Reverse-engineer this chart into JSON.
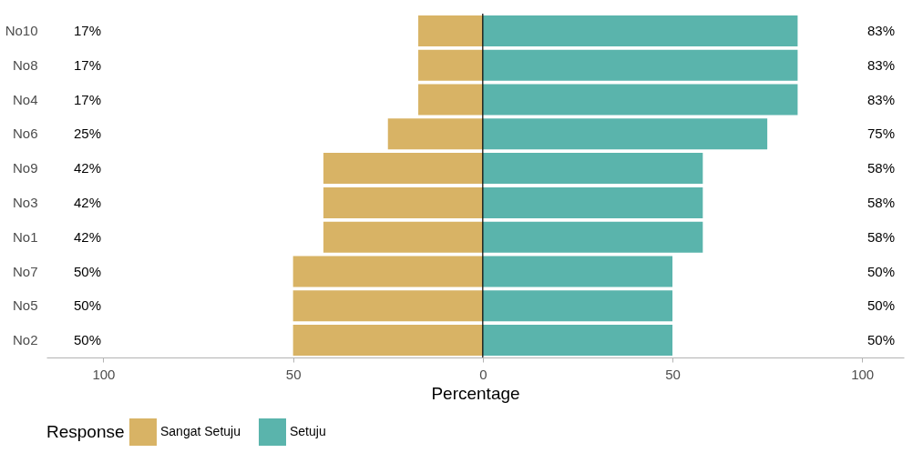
{
  "chart_data": {
    "type": "bar",
    "orientation": "horizontal",
    "xlabel": "Percentage",
    "legend_title": "Response",
    "legend": "bottom",
    "categories": [
      "No10",
      "No8",
      "No4",
      "No6",
      "No9",
      "No3",
      "No1",
      "No7",
      "No5",
      "No2"
    ],
    "series": [
      {
        "name": "Sangat Setuju",
        "color": "#d8b365",
        "values": [
          17,
          17,
          17,
          25,
          42,
          42,
          42,
          50,
          50,
          50
        ],
        "base": [
          -17,
          -17,
          -17,
          -25,
          -42,
          -42,
          -42,
          -50,
          -50,
          -50
        ]
      },
      {
        "name": "Setuju",
        "color": "#5ab4ac",
        "values": [
          83,
          83,
          83,
          75,
          58,
          58,
          58,
          50,
          50,
          50
        ],
        "base": [
          0,
          0,
          0,
          0,
          0,
          0,
          0,
          0,
          0,
          0
        ]
      }
    ],
    "annotations": [
      "17%",
      "17%",
      "17%",
      "25%",
      "42%",
      "42%",
      "42%",
      "50%",
      "50%",
      "50%",
      "83%",
      "83%",
      "83%",
      "75%",
      "58%",
      "58%",
      "58%",
      "50%",
      "50%",
      "50%"
    ],
    "xlim": [
      -115,
      111
    ],
    "xticks": [
      {
        "value": -100,
        "label": "100"
      },
      {
        "value": -50,
        "label": "50"
      },
      0,
      50,
      100
    ],
    "ref_lines": [
      {
        "axis": "x",
        "value": 0,
        "color": "#000000"
      }
    ],
    "grid": false
  }
}
